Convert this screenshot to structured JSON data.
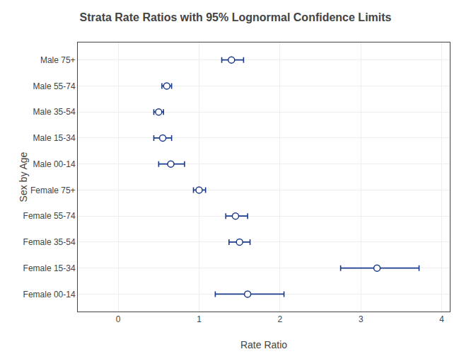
{
  "chart_data": {
    "type": "forest",
    "title": "Strata Rate Ratios with 95% Lognormal Confidence Limits",
    "xlabel": "Rate Ratio",
    "ylabel": "Sex by Age",
    "categories": [
      "Male 75+",
      "Male 55-74",
      "Male 35-54",
      "Male 15-34",
      "Male 00-14",
      "Female 75+",
      "Female 55-74",
      "Female 35-54",
      "Female 15-34",
      "Female 00-14"
    ],
    "values": [
      1.4,
      0.6,
      0.5,
      0.55,
      0.65,
      1.0,
      1.45,
      1.5,
      3.2,
      1.6
    ],
    "lower": [
      1.28,
      0.54,
      0.44,
      0.44,
      0.5,
      0.93,
      1.33,
      1.37,
      2.75,
      1.2
    ],
    "upper": [
      1.55,
      0.66,
      0.56,
      0.66,
      0.82,
      1.08,
      1.6,
      1.63,
      3.72,
      2.05
    ],
    "reference_line": {
      "value": 1.0,
      "color": "#666666"
    },
    "xlim": [
      -0.5,
      4.1
    ],
    "xticks": [
      0,
      1,
      2,
      3,
      4
    ],
    "color": "#1a3a8c",
    "marker": "circle",
    "grid": true
  }
}
